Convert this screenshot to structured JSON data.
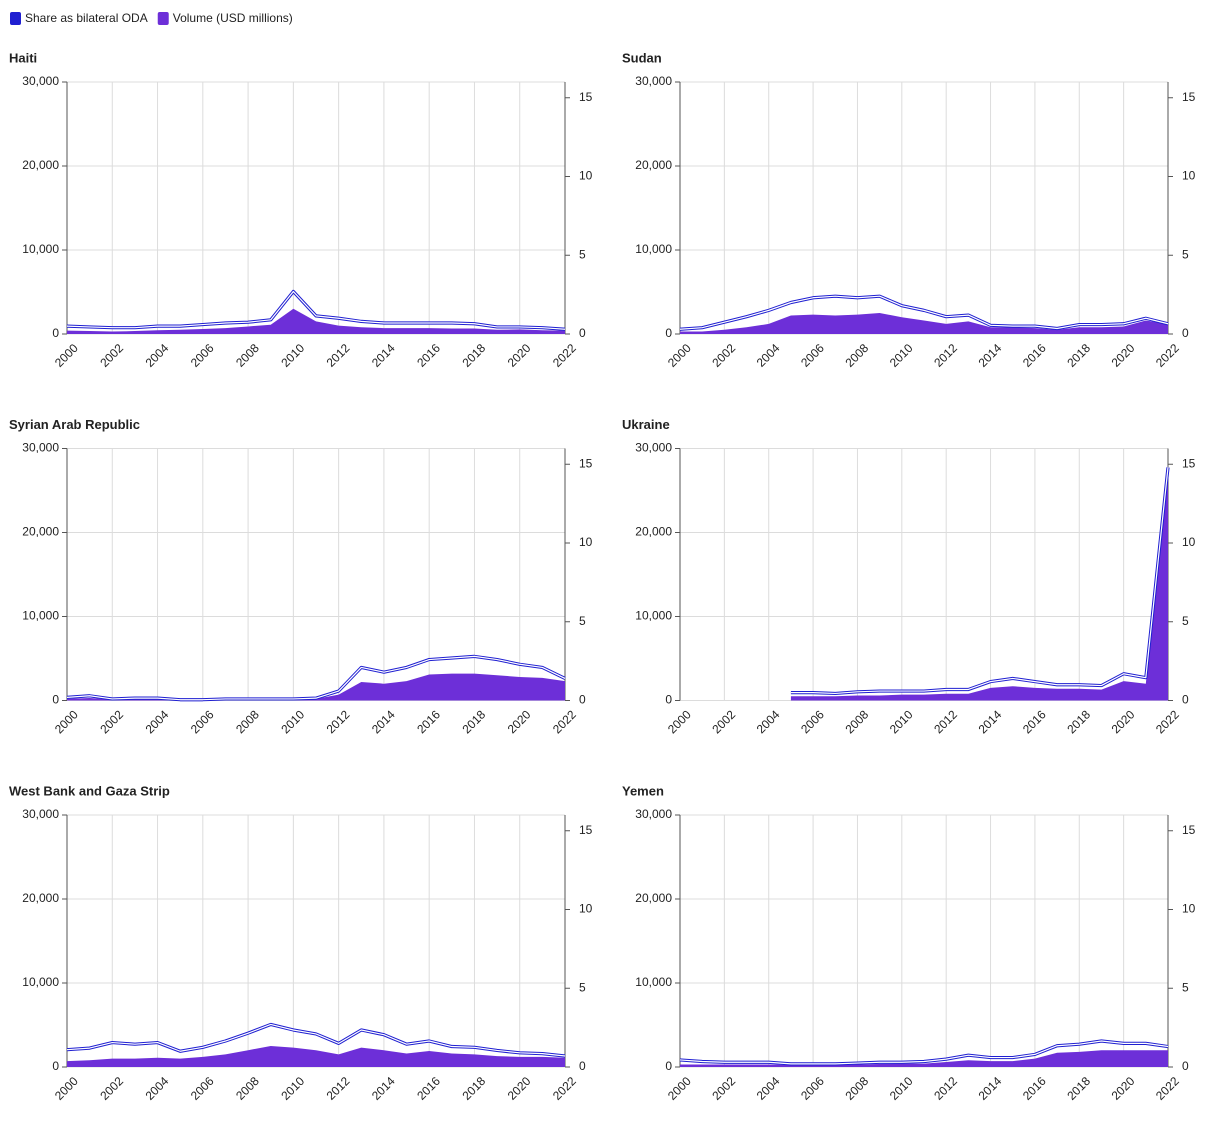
{
  "chart_data": [
    {
      "type": "area",
      "title": "Haiti",
      "x": [
        2000,
        2001,
        2002,
        2003,
        2004,
        2005,
        2006,
        2007,
        2008,
        2009,
        2010,
        2011,
        2012,
        2013,
        2014,
        2015,
        2016,
        2017,
        2018,
        2019,
        2020,
        2021,
        2022
      ],
      "xlim": [
        2000,
        2022
      ],
      "xticks": [
        2000,
        2002,
        2004,
        2006,
        2008,
        2010,
        2012,
        2014,
        2016,
        2018,
        2020,
        2022
      ],
      "ylim": [
        0,
        30000
      ],
      "yticks": [
        0,
        {
          "value": 10000,
          "label": "10,000"
        },
        {
          "value": 20000,
          "label": "20,000"
        },
        {
          "value": 30000,
          "label": "30,000"
        }
      ],
      "y2lim": [
        0,
        16
      ],
      "y2ticks": [
        0,
        5,
        10,
        15
      ],
      "grid": true,
      "series": [
        {
          "name": "Share as bilateral ODA",
          "type": "line",
          "axis": "y2",
          "color": "#1f1fd1",
          "values": [
            0.5,
            0.45,
            0.4,
            0.4,
            0.5,
            0.5,
            0.6,
            0.7,
            0.75,
            0.9,
            2.7,
            1.15,
            1.0,
            0.8,
            0.7,
            0.7,
            0.7,
            0.7,
            0.65,
            0.45,
            0.45,
            0.4,
            0.3
          ]
        },
        {
          "name": "Volume (USD millions)",
          "type": "area",
          "color": "#6d2fd8",
          "values": [
            400,
            350,
            300,
            350,
            450,
            500,
            600,
            700,
            900,
            1100,
            3000,
            1500,
            1000,
            800,
            700,
            700,
            700,
            650,
            650,
            500,
            550,
            450,
            400
          ]
        }
      ]
    },
    {
      "type": "area",
      "title": "Sudan",
      "x": [
        2000,
        2001,
        2002,
        2003,
        2004,
        2005,
        2006,
        2007,
        2008,
        2009,
        2010,
        2011,
        2012,
        2013,
        2014,
        2015,
        2016,
        2017,
        2018,
        2019,
        2020,
        2021,
        2022
      ],
      "xlim": [
        2000,
        2022
      ],
      "xticks": [
        2000,
        2002,
        2004,
        2006,
        2008,
        2010,
        2012,
        2014,
        2016,
        2018,
        2020,
        2022
      ],
      "ylim": [
        0,
        30000
      ],
      "yticks": [
        0,
        {
          "value": 10000,
          "label": "10,000"
        },
        {
          "value": 20000,
          "label": "20,000"
        },
        {
          "value": 30000,
          "label": "30,000"
        }
      ],
      "y2lim": [
        0,
        16
      ],
      "y2ticks": [
        0,
        5,
        10,
        15
      ],
      "grid": true,
      "series": [
        {
          "name": "Share as bilateral ODA",
          "type": "line",
          "axis": "y2",
          "color": "#1f1fd1",
          "values": [
            0.3,
            0.4,
            0.75,
            1.1,
            1.5,
            2.0,
            2.3,
            2.4,
            2.3,
            2.4,
            1.8,
            1.5,
            1.1,
            1.2,
            0.55,
            0.5,
            0.5,
            0.35,
            0.6,
            0.6,
            0.65,
            1.0,
            0.65
          ]
        },
        {
          "name": "Volume (USD millions)",
          "type": "area",
          "color": "#6d2fd8",
          "values": [
            300,
            300,
            500,
            800,
            1200,
            2200,
            2300,
            2200,
            2300,
            2500,
            2000,
            1600,
            1200,
            1500,
            800,
            800,
            700,
            500,
            800,
            800,
            900,
            1600,
            1200
          ]
        }
      ]
    },
    {
      "type": "area",
      "title": "Syrian Arab Republic",
      "x": [
        2000,
        2001,
        2002,
        2003,
        2004,
        2005,
        2006,
        2007,
        2008,
        2009,
        2010,
        2011,
        2012,
        2013,
        2014,
        2015,
        2016,
        2017,
        2018,
        2019,
        2020,
        2021,
        2022
      ],
      "xlim": [
        2000,
        2022
      ],
      "xticks": [
        2000,
        2002,
        2004,
        2006,
        2008,
        2010,
        2012,
        2014,
        2016,
        2018,
        2020,
        2022
      ],
      "ylim": [
        0,
        30000
      ],
      "yticks": [
        0,
        {
          "value": 10000,
          "label": "10,000"
        },
        {
          "value": 20000,
          "label": "20,000"
        },
        {
          "value": 30000,
          "label": "30,000"
        }
      ],
      "y2lim": [
        0,
        16
      ],
      "y2ticks": [
        0,
        5,
        10,
        15
      ],
      "grid": true,
      "series": [
        {
          "name": "Share as bilateral ODA",
          "type": "line",
          "axis": "y2",
          "color": "#1f1fd1",
          "values": [
            0.2,
            0.3,
            0.1,
            0.15,
            0.15,
            0.05,
            0.05,
            0.1,
            0.1,
            0.1,
            0.1,
            0.15,
            0.6,
            2.1,
            1.8,
            2.1,
            2.6,
            2.7,
            2.8,
            2.6,
            2.3,
            2.1,
            1.4
          ]
        },
        {
          "name": "Volume (USD millions)",
          "type": "area",
          "color": "#6d2fd8",
          "values": [
            200,
            300,
            100,
            150,
            200,
            100,
            100,
            100,
            150,
            150,
            150,
            200,
            700,
            2200,
            2000,
            2300,
            3100,
            3200,
            3200,
            3000,
            2800,
            2700,
            2300
          ]
        }
      ]
    },
    {
      "type": "area",
      "title": "Ukraine",
      "x": [
        2000,
        2001,
        2002,
        2003,
        2004,
        2005,
        2006,
        2007,
        2008,
        2009,
        2010,
        2011,
        2012,
        2013,
        2014,
        2015,
        2016,
        2017,
        2018,
        2019,
        2020,
        2021,
        2022
      ],
      "xlim": [
        2000,
        2022
      ],
      "xticks": [
        2000,
        2002,
        2004,
        2006,
        2008,
        2010,
        2012,
        2014,
        2016,
        2018,
        2020,
        2022
      ],
      "ylim": [
        0,
        30000
      ],
      "yticks": [
        0,
        {
          "value": 10000,
          "label": "10,000"
        },
        {
          "value": 20000,
          "label": "20,000"
        },
        {
          "value": 30000,
          "label": "30,000"
        }
      ],
      "y2lim": [
        0,
        16
      ],
      "y2ticks": [
        0,
        5,
        10,
        15
      ],
      "grid": true,
      "series": [
        {
          "name": "Share as bilateral ODA",
          "type": "line",
          "axis": "y2",
          "color": "#1f1fd1",
          "values": [
            null,
            null,
            null,
            null,
            null,
            0.5,
            0.5,
            0.45,
            0.55,
            0.6,
            0.6,
            0.6,
            0.7,
            0.7,
            1.2,
            1.4,
            1.2,
            1.0,
            1.0,
            0.95,
            1.7,
            1.45,
            14.8
          ]
        },
        {
          "name": "Volume (USD millions)",
          "type": "area",
          "color": "#6d2fd8",
          "values": [
            null,
            null,
            null,
            null,
            null,
            500,
            500,
            500,
            600,
            600,
            700,
            700,
            800,
            800,
            1500,
            1700,
            1500,
            1400,
            1400,
            1300,
            2300,
            2000,
            28000
          ]
        }
      ]
    },
    {
      "type": "area",
      "title": "West Bank and Gaza Strip",
      "x": [
        2000,
        2001,
        2002,
        2003,
        2004,
        2005,
        2006,
        2007,
        2008,
        2009,
        2010,
        2011,
        2012,
        2013,
        2014,
        2015,
        2016,
        2017,
        2018,
        2019,
        2020,
        2021,
        2022
      ],
      "xlim": [
        2000,
        2022
      ],
      "xticks": [
        2000,
        2002,
        2004,
        2006,
        2008,
        2010,
        2012,
        2014,
        2016,
        2018,
        2020,
        2022
      ],
      "ylim": [
        0,
        30000
      ],
      "yticks": [
        0,
        {
          "value": 10000,
          "label": "10,000"
        },
        {
          "value": 20000,
          "label": "20,000"
        },
        {
          "value": 30000,
          "label": "30,000"
        }
      ],
      "y2lim": [
        0,
        16
      ],
      "y2ticks": [
        0,
        5,
        10,
        15
      ],
      "grid": true,
      "series": [
        {
          "name": "Share as bilateral ODA",
          "type": "line",
          "axis": "y2",
          "color": "#1f1fd1",
          "values": [
            1.1,
            1.2,
            1.55,
            1.45,
            1.55,
            1.0,
            1.25,
            1.65,
            2.15,
            2.7,
            2.35,
            2.1,
            1.5,
            2.35,
            2.05,
            1.45,
            1.65,
            1.3,
            1.25,
            1.05,
            0.9,
            0.85,
            0.7
          ]
        },
        {
          "name": "Volume (USD millions)",
          "type": "area",
          "color": "#6d2fd8",
          "values": [
            700,
            800,
            1000,
            1000,
            1100,
            1000,
            1200,
            1500,
            2000,
            2500,
            2300,
            2000,
            1500,
            2300,
            2000,
            1600,
            1900,
            1600,
            1500,
            1300,
            1200,
            1200,
            1100
          ]
        }
      ]
    },
    {
      "type": "area",
      "title": "Yemen",
      "x": [
        2000,
        2001,
        2002,
        2003,
        2004,
        2005,
        2006,
        2007,
        2008,
        2009,
        2010,
        2011,
        2012,
        2013,
        2014,
        2015,
        2016,
        2017,
        2018,
        2019,
        2020,
        2021,
        2022
      ],
      "xlim": [
        2000,
        2022
      ],
      "xticks": [
        2000,
        2002,
        2004,
        2006,
        2008,
        2010,
        2012,
        2014,
        2016,
        2018,
        2020,
        2022
      ],
      "ylim": [
        0,
        30000
      ],
      "yticks": [
        0,
        {
          "value": 10000,
          "label": "10,000"
        },
        {
          "value": 20000,
          "label": "20,000"
        },
        {
          "value": 30000,
          "label": "30,000"
        }
      ],
      "y2lim": [
        0,
        16
      ],
      "y2ticks": [
        0,
        5,
        10,
        15
      ],
      "grid": true,
      "series": [
        {
          "name": "Share as bilateral ODA",
          "type": "line",
          "axis": "y2",
          "color": "#1f1fd1",
          "values": [
            0.45,
            0.35,
            0.3,
            0.3,
            0.3,
            0.2,
            0.2,
            0.2,
            0.25,
            0.3,
            0.3,
            0.35,
            0.5,
            0.75,
            0.6,
            0.6,
            0.8,
            1.35,
            1.45,
            1.65,
            1.5,
            1.5,
            1.3
          ]
        },
        {
          "name": "Volume (USD millions)",
          "type": "area",
          "color": "#6d2fd8",
          "values": [
            300,
            300,
            300,
            300,
            300,
            250,
            250,
            250,
            300,
            350,
            400,
            400,
            600,
            800,
            700,
            700,
            1000,
            1700,
            1800,
            2000,
            2000,
            2000,
            2000
          ]
        }
      ]
    }
  ]
}
